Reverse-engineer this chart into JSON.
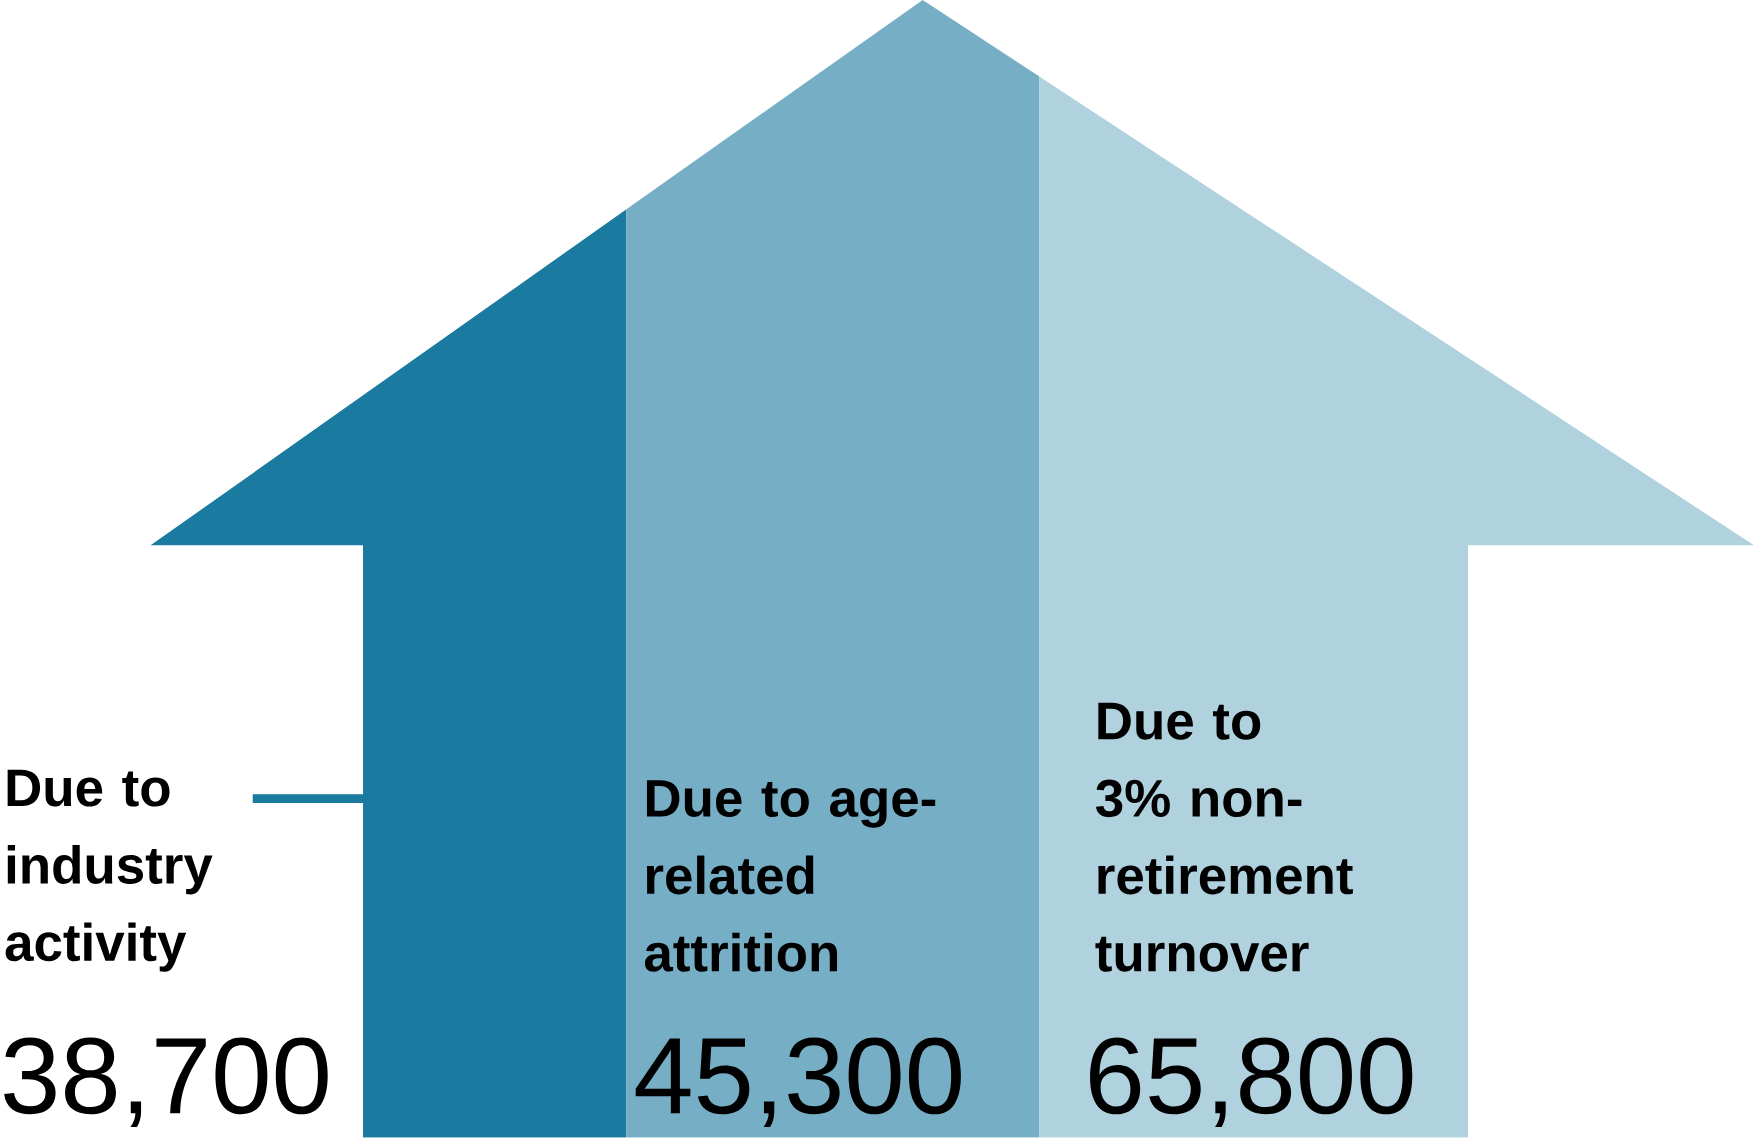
{
  "chart_data": {
    "type": "other",
    "categories": [
      "Due to industry activity",
      "Due to age-related attrition",
      "Due to 3% non-retirement turnover"
    ],
    "values": [
      38700,
      45300,
      65800
    ],
    "colors": [
      "#1a7a9f",
      "#76aec5",
      "#b0d2de"
    ],
    "data_labels": true,
    "value_labels": [
      "38,700",
      "45,300",
      "65,800"
    ]
  }
}
